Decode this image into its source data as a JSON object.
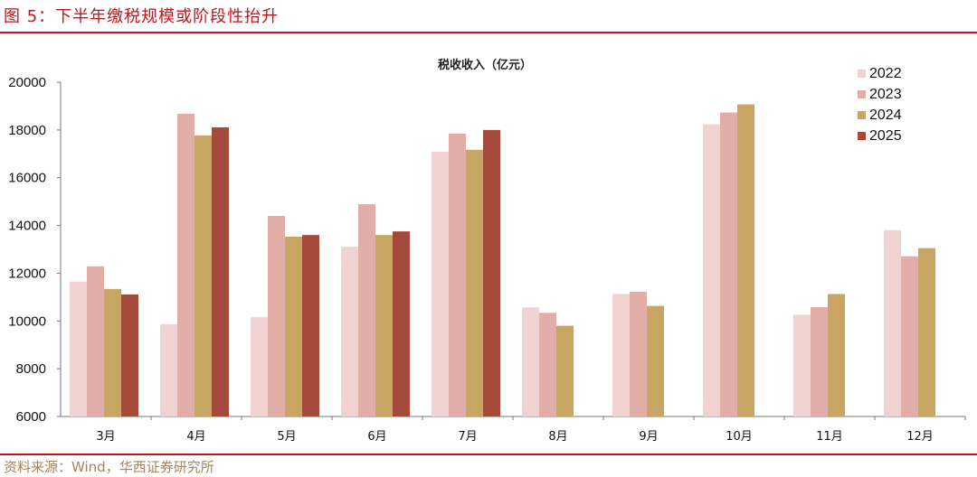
{
  "figure": {
    "title": "图 5：下半年缴税规模或阶段性抬升",
    "source": "资料来源：Wind，华西证券研究所"
  },
  "colors": {
    "rule": "#c0151b",
    "series": [
      "#f0d3d1",
      "#e0aea6",
      "#c9a563",
      "#a34a3a"
    ]
  },
  "chart_data": {
    "type": "bar",
    "title": "税收收入（亿元）",
    "xlabel": "",
    "ylabel": "",
    "ylim": [
      6000,
      20000
    ],
    "yticks": [
      6000,
      8000,
      10000,
      12000,
      14000,
      16000,
      18000,
      20000
    ],
    "grid": false,
    "legend_position": "top-right",
    "categories": [
      "3月",
      "4月",
      "5月",
      "6月",
      "7月",
      "8月",
      "9月",
      "10月",
      "11月",
      "12月"
    ],
    "series": [
      {
        "name": "2022",
        "values": [
          11650,
          9860,
          10160,
          13110,
          17090,
          10570,
          11130,
          18240,
          10260,
          13800
        ]
      },
      {
        "name": "2023",
        "values": [
          12290,
          18680,
          14400,
          14890,
          17850,
          10340,
          11220,
          18730,
          10580,
          12710
        ]
      },
      {
        "name": "2024",
        "values": [
          11340,
          17770,
          13530,
          13600,
          17170,
          9800,
          10630,
          19070,
          11130,
          13050
        ]
      },
      {
        "name": "2025",
        "values": [
          11110,
          18110,
          13600,
          13750,
          18000,
          null,
          null,
          null,
          null,
          null
        ]
      }
    ]
  }
}
